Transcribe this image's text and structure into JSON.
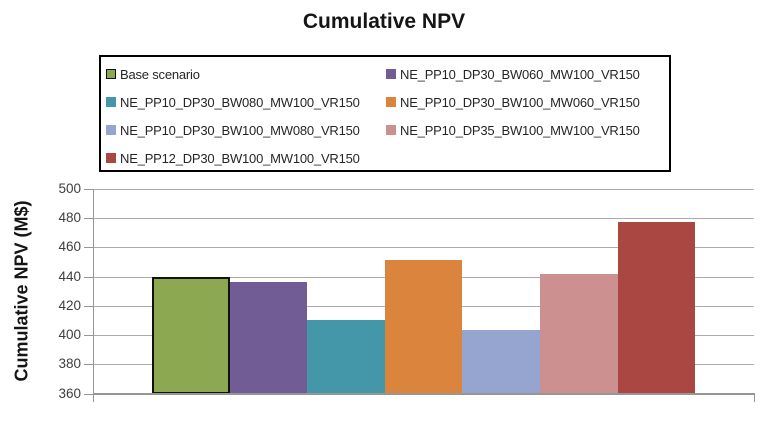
{
  "title": "Cumulative NPV",
  "y_axis_label": "Cumulative NPV (M$)",
  "chart_data": {
    "type": "bar",
    "title": "Cumulative NPV",
    "xlabel": "",
    "ylabel": "Cumulative NPV (M$)",
    "ylim": [
      360,
      500
    ],
    "ytick_step": 20,
    "grid": true,
    "legend_position": "top-inside-box",
    "series": [
      {
        "name": "Base scenario",
        "value": 440,
        "color": "#8CA951",
        "outline": "#111111"
      },
      {
        "name": "NE_PP10_DP30_BW060_MW100_VR150",
        "value": 437,
        "color": "#715C96"
      },
      {
        "name": "NE_PP10_DP30_BW080_MW100_VR150",
        "value": 411,
        "color": "#4397A9"
      },
      {
        "name": "NE_PP10_DP30_BW100_MW060_VR150",
        "value": 452,
        "color": "#DB843D"
      },
      {
        "name": "NE_PP10_DP30_BW100_MW080_VR150",
        "value": 404,
        "color": "#95A5D0"
      },
      {
        "name": "NE_PP10_DP35_BW100_MW100_VR150",
        "value": 442,
        "color": "#CD9091"
      },
      {
        "name": "NE_PP12_DP30_BW100_MW100_VR150",
        "value": 478,
        "color": "#AA4743"
      }
    ],
    "colors": {
      "grid": "#ababab",
      "axis": "#969696",
      "text": "#3d3d3d"
    }
  }
}
